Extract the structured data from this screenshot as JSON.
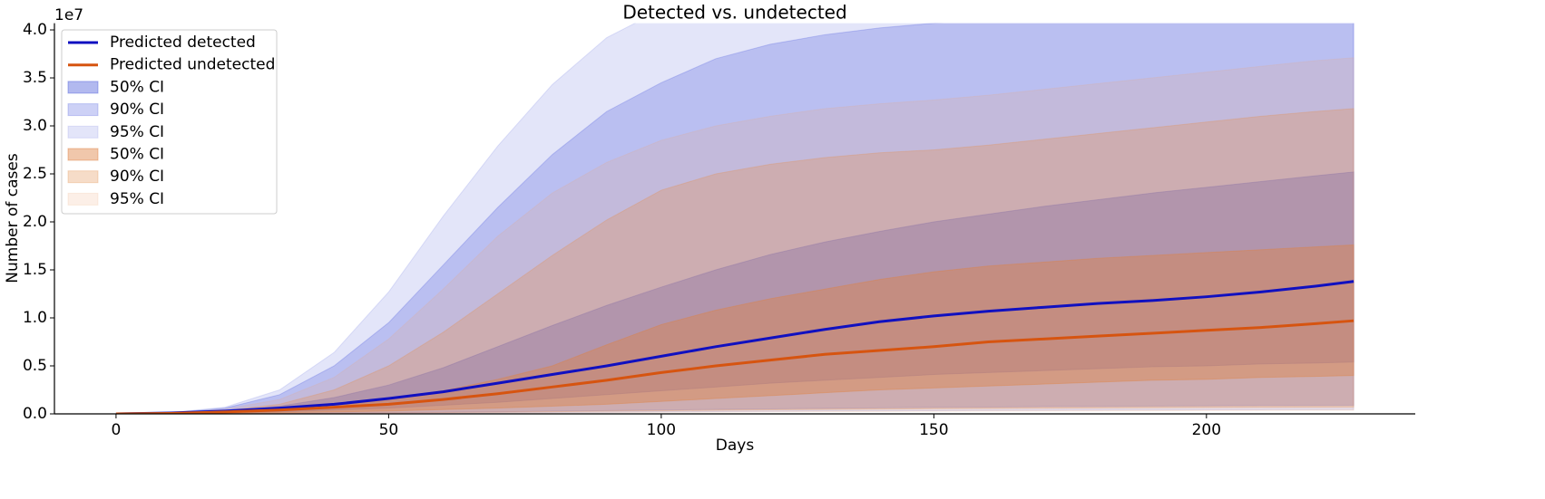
{
  "chart_data": {
    "type": "line-band",
    "title": "Detected vs. undetected",
    "xlabel": "Days",
    "ylabel": "Number of cases",
    "y_offset_label": "1e7",
    "x": [
      0,
      10,
      20,
      30,
      40,
      50,
      60,
      70,
      80,
      90,
      100,
      110,
      120,
      130,
      140,
      150,
      160,
      170,
      180,
      190,
      200,
      210,
      220,
      227
    ],
    "xlim": [
      -11.3,
      238.3
    ],
    "xticks": [
      0,
      50,
      100,
      150,
      200
    ],
    "ylim": [
      0,
      4.07
    ],
    "yticks": [
      {
        "value": 0,
        "label": "0.0"
      },
      0.5,
      {
        "value": 1,
        "label": "1.0"
      },
      1.5,
      {
        "value": 2,
        "label": "2.0"
      },
      2.5,
      {
        "value": 3,
        "label": "3.0"
      },
      3.5,
      {
        "value": 4,
        "label": "4.0"
      }
    ],
    "legend": "upper left",
    "series": [
      {
        "name": "Predicted detected",
        "color": "#1010c0",
        "values": [
          0,
          0.01,
          0.03,
          0.06,
          0.1,
          0.16,
          0.23,
          0.32,
          0.41,
          0.5,
          0.6,
          0.7,
          0.79,
          0.88,
          0.96,
          1.02,
          1.07,
          1.11,
          1.15,
          1.18,
          1.22,
          1.27,
          1.33,
          1.38
        ]
      },
      {
        "name": "Predicted undetected",
        "color": "#d65410",
        "values": [
          0,
          0.005,
          0.02,
          0.04,
          0.07,
          0.1,
          0.15,
          0.21,
          0.28,
          0.35,
          0.43,
          0.5,
          0.56,
          0.62,
          0.66,
          0.7,
          0.75,
          0.78,
          0.81,
          0.84,
          0.87,
          0.9,
          0.94,
          0.97
        ]
      }
    ],
    "bands": [
      {
        "name": "50% CI",
        "color": "#3f4fd8",
        "alpha": 0.4,
        "lower": [
          0,
          0.003,
          0.01,
          0.02,
          0.04,
          0.06,
          0.09,
          0.12,
          0.16,
          0.2,
          0.24,
          0.28,
          0.32,
          0.35,
          0.38,
          0.41,
          0.43,
          0.45,
          0.47,
          0.49,
          0.5,
          0.52,
          0.53,
          0.54
        ],
        "upper": [
          0,
          0.01,
          0.03,
          0.08,
          0.17,
          0.3,
          0.48,
          0.7,
          0.92,
          1.13,
          1.32,
          1.5,
          1.66,
          1.79,
          1.9,
          2.0,
          2.08,
          2.16,
          2.23,
          2.3,
          2.36,
          2.42,
          2.48,
          2.52
        ]
      },
      {
        "name": "90% CI",
        "color": "#4a58e0",
        "alpha": 0.28,
        "lower": [
          0,
          0,
          0.002,
          0.005,
          0.008,
          0.012,
          0.017,
          0.022,
          0.028,
          0.034,
          0.04,
          0.046,
          0.052,
          0.057,
          0.062,
          0.067,
          0.071,
          0.075,
          0.078,
          0.081,
          0.084,
          0.087,
          0.089,
          0.09
        ],
        "upper": [
          0,
          0.01,
          0.06,
          0.2,
          0.5,
          0.95,
          1.55,
          2.15,
          2.7,
          3.15,
          3.45,
          3.7,
          3.85,
          3.95,
          4.02,
          4.07,
          4.1,
          4.13,
          4.15,
          4.17,
          4.19,
          4.2,
          4.21,
          4.22
        ]
      },
      {
        "name": "95% CI",
        "color": "#6670e0",
        "alpha": 0.18,
        "lower": [
          0,
          0,
          0.001,
          0.002,
          0.004,
          0.006,
          0.008,
          0.011,
          0.014,
          0.017,
          0.02,
          0.023,
          0.026,
          0.029,
          0.031,
          0.033,
          0.035,
          0.037,
          0.039,
          0.04,
          0.042,
          0.043,
          0.044,
          0.045
        ],
        "upper": [
          0,
          0.015,
          0.07,
          0.25,
          0.64,
          1.27,
          2.06,
          2.79,
          3.43,
          3.92,
          4.21,
          4.41,
          4.56,
          4.66,
          4.73,
          4.78,
          4.81,
          4.84,
          4.86,
          4.87,
          4.88,
          4.89,
          4.9,
          4.9
        ]
      },
      {
        "name": "50% CI",
        "color": "#d9732e",
        "alpha": 0.4,
        "lower": [
          0,
          0.002,
          0.006,
          0.012,
          0.02,
          0.03,
          0.045,
          0.06,
          0.08,
          0.1,
          0.13,
          0.16,
          0.19,
          0.22,
          0.25,
          0.27,
          0.29,
          0.31,
          0.33,
          0.35,
          0.36,
          0.38,
          0.39,
          0.4
        ],
        "upper": [
          0,
          0.005,
          0.02,
          0.04,
          0.08,
          0.15,
          0.24,
          0.36,
          0.5,
          0.72,
          0.93,
          1.08,
          1.2,
          1.3,
          1.4,
          1.48,
          1.54,
          1.58,
          1.62,
          1.65,
          1.68,
          1.71,
          1.74,
          1.76
        ]
      },
      {
        "name": "90% CI",
        "color": "#e08a4a",
        "alpha": 0.3,
        "lower": [
          0,
          0,
          0.002,
          0.004,
          0.006,
          0.01,
          0.014,
          0.018,
          0.022,
          0.027,
          0.032,
          0.037,
          0.042,
          0.046,
          0.05,
          0.054,
          0.057,
          0.06,
          0.062,
          0.065,
          0.067,
          0.07,
          0.071,
          0.072
        ],
        "upper": [
          0,
          0.008,
          0.035,
          0.1,
          0.25,
          0.5,
          0.85,
          1.25,
          1.65,
          2.02,
          2.33,
          2.5,
          2.6,
          2.67,
          2.72,
          2.75,
          2.8,
          2.86,
          2.92,
          2.98,
          3.04,
          3.1,
          3.15,
          3.18
        ]
      },
      {
        "name": "95% CI",
        "color": "#eca77a",
        "alpha": 0.18,
        "lower": [
          0,
          0,
          0.001,
          0.002,
          0.003,
          0.005,
          0.007,
          0.009,
          0.011,
          0.013,
          0.016,
          0.018,
          0.021,
          0.023,
          0.025,
          0.027,
          0.028,
          0.03,
          0.031,
          0.032,
          0.034,
          0.035,
          0.036,
          0.036
        ],
        "upper": [
          0,
          0.01,
          0.05,
          0.15,
          0.38,
          0.78,
          1.3,
          1.85,
          2.3,
          2.62,
          2.85,
          3.0,
          3.1,
          3.18,
          3.23,
          3.27,
          3.32,
          3.38,
          3.44,
          3.5,
          3.56,
          3.62,
          3.68,
          3.71
        ]
      }
    ]
  }
}
